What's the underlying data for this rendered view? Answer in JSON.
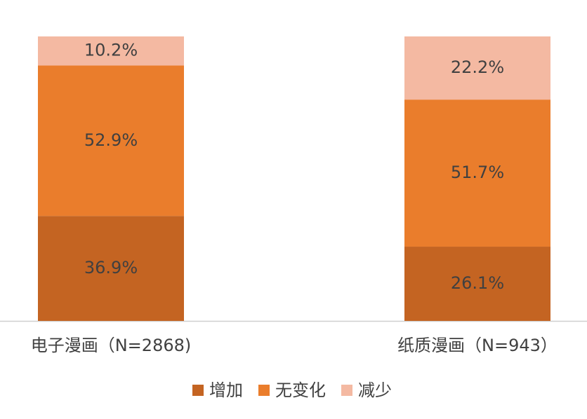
{
  "chart_data": {
    "type": "stacked-bar",
    "categories": [
      "电子漫画（N=2868)",
      "纸质漫画（N=943）"
    ],
    "series": [
      {
        "name": "增加",
        "color": "#c46422",
        "values": [
          36.9,
          26.1
        ],
        "value_labels": [
          "36.9%",
          "26.1%"
        ]
      },
      {
        "name": "无变化",
        "color": "#ea7d2c",
        "values": [
          52.9,
          51.7
        ],
        "value_labels": [
          "52.9%",
          "51.7%"
        ]
      },
      {
        "name": "减少",
        "color": "#f4b9a2",
        "values": [
          10.2,
          22.2
        ],
        "value_labels": [
          "10.2%",
          "22.2%"
        ]
      }
    ]
  }
}
